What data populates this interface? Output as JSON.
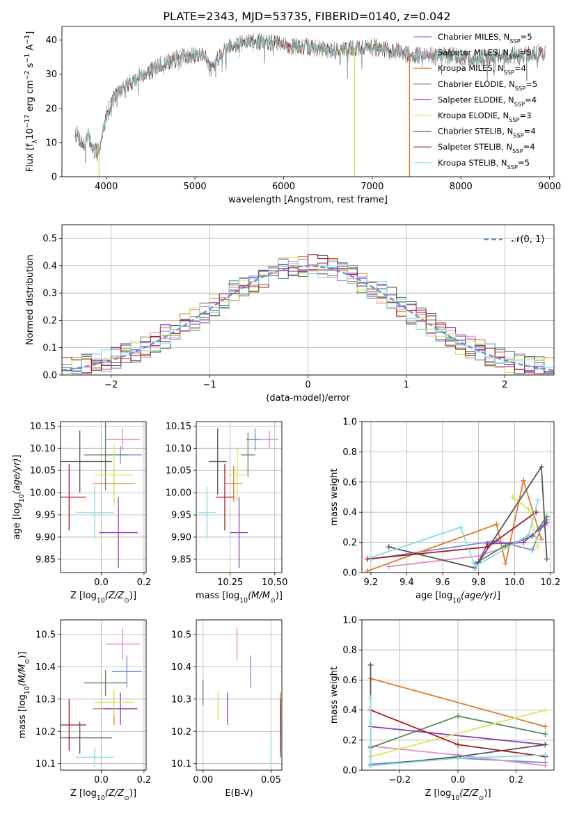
{
  "page_title": "PLATE=2343, MJD=53735, FIBERID=0140, z=0.042",
  "colors": {
    "series": [
      "#6c8ed6",
      "#e58ac6",
      "#e07b2a",
      "#5b8a5b",
      "#8e3ab5",
      "#d4e85a",
      "#555555",
      "#a81820",
      "#86dde0"
    ],
    "normal_curve": "#6c8ed6",
    "grid": "#b0b0b0"
  },
  "chart_data": [
    {
      "id": "spectrum",
      "type": "line",
      "title": "PLATE=2343, MJD=53735, FIBERID=0140, z=0.042",
      "xlabel": "wavelength [Angstrom, rest frame]",
      "ylabel": "Flux [f",
      "xlim": [
        3500,
        9050
      ],
      "ylim": [
        0,
        44
      ],
      "xticks": [
        4000,
        5000,
        6000,
        7000,
        8000,
        9000
      ],
      "yticks": [
        0,
        10,
        20,
        30,
        40
      ],
      "grid": false,
      "legend": "upper-right",
      "continuum": {
        "x": [
          3650,
          3700,
          3750,
          3800,
          3850,
          3900,
          3950,
          4000,
          4100,
          4200,
          4300,
          4400,
          4500,
          4600,
          4700,
          4800,
          4900,
          5000,
          5100,
          5200,
          5300,
          5400,
          5500,
          5600,
          5800,
          6000,
          6200,
          6400,
          6600,
          6800,
          7000,
          7200,
          7400,
          7600,
          7800,
          8000,
          8200,
          8400,
          8600,
          8800,
          8950
        ],
        "y": [
          13,
          11,
          9,
          12,
          8,
          7,
          11,
          18,
          24,
          26,
          28,
          30,
          31,
          32.5,
          33.5,
          34.5,
          35.5,
          35.5,
          36,
          31,
          37,
          38.5,
          39,
          39.5,
          39.5,
          38.5,
          38,
          37.5,
          37,
          37.5,
          38,
          37,
          36,
          35.5,
          35.5,
          35,
          34.5,
          35,
          35.5,
          36,
          36.5
        ]
      },
      "sky_spikes": [
        {
          "x": 3920,
          "series": 5
        },
        {
          "x": 6800,
          "series": 5
        },
        {
          "x": 7420,
          "series": 2
        }
      ],
      "series": [
        {
          "name": "Chabrier MILES",
          "nssp": "5"
        },
        {
          "name": "Salpeter MILES",
          "nssp": "5"
        },
        {
          "name": "Kroupa MILES",
          "nssp": "4"
        },
        {
          "name": "Chabrier ELODIE",
          "nssp": "5"
        },
        {
          "name": "Salpeter ELODIE",
          "nssp": "4"
        },
        {
          "name": "Kroupa ELODIE",
          "nssp": "3"
        },
        {
          "name": "Chabrier STELIB",
          "nssp": "4"
        },
        {
          "name": "Salpeter STELIB",
          "nssp": "4"
        },
        {
          "name": "Kroupa STELIB",
          "nssp": "5"
        }
      ]
    },
    {
      "id": "residuals",
      "type": "histogram",
      "xlabel": "(data-model)/error",
      "ylabel": "Normed distribution",
      "xlim": [
        -2.5,
        2.5
      ],
      "ylim": [
        0,
        0.55
      ],
      "xticks": [
        -2,
        -1,
        0,
        1,
        2
      ],
      "yticks": [
        0.0,
        0.1,
        0.2,
        0.3,
        0.4,
        0.5
      ],
      "grid": true,
      "legend": "upper-right",
      "bin_width": 0.1,
      "bin_start": -2.5,
      "reference_curve": "normal(0,1)"
    },
    {
      "id": "age-vs-Z",
      "type": "scatter",
      "xlabel": "Z [log",
      "ylabel": "age  [log",
      "xlim": [
        -0.19,
        0.21
      ],
      "ylim": [
        9.82,
        10.16
      ],
      "xticks": [
        0.0,
        0.2
      ],
      "yticks": [
        9.85,
        9.9,
        9.95,
        10.0,
        10.05,
        10.1,
        10.15
      ],
      "grid": true,
      "points": [
        {
          "x": 0.09,
          "y": 10.085,
          "ex": 0.1,
          "ey": 0.02
        },
        {
          "x": 0.1,
          "y": 10.12,
          "ex": 0.08,
          "ey": 0.025
        },
        {
          "x": 0.06,
          "y": 10.02,
          "ex": 0.1,
          "ey": 0.04
        },
        {
          "x": 0.02,
          "y": 10.085,
          "ex": 0.1,
          "ey": 0.08
        },
        {
          "x": 0.08,
          "y": 9.91,
          "ex": 0.09,
          "ey": 0.08
        },
        {
          "x": 0.06,
          "y": 10.04,
          "ex": 0.09,
          "ey": 0.07
        },
        {
          "x": -0.1,
          "y": 10.07,
          "ex": 0.15,
          "ey": 0.07
        },
        {
          "x": -0.15,
          "y": 9.99,
          "ex": 0.08,
          "ey": 0.075
        },
        {
          "x": -0.03,
          "y": 9.955,
          "ex": 0.09,
          "ey": 0.06
        }
      ]
    },
    {
      "id": "age-vs-mass",
      "type": "scatter",
      "xlabel": "mass [log",
      "ylabel": "",
      "xlim": [
        10.06,
        10.54
      ],
      "ylim": [
        9.82,
        10.16
      ],
      "xticks": [
        10.25,
        10.5
      ],
      "yticks": [
        9.85,
        9.9,
        9.95,
        10.0,
        10.05,
        10.1,
        10.15
      ],
      "grid": true,
      "points": [
        {
          "x": 10.39,
          "y": 10.12,
          "ex": 0.05,
          "ey": 0.025
        },
        {
          "x": 10.47,
          "y": 10.12,
          "ex": 0.05,
          "ey": 0.02
        },
        {
          "x": 10.27,
          "y": 10.02,
          "ex": 0.05,
          "ey": 0.04
        },
        {
          "x": 10.35,
          "y": 10.085,
          "ex": 0.04,
          "ey": 0.05
        },
        {
          "x": 10.3,
          "y": 9.91,
          "ex": 0.05,
          "ey": 0.08
        },
        {
          "x": 10.29,
          "y": 10.04,
          "ex": 0.05,
          "ey": 0.06
        },
        {
          "x": 10.18,
          "y": 10.07,
          "ex": 0.05,
          "ey": 0.075
        },
        {
          "x": 10.22,
          "y": 9.99,
          "ex": 0.05,
          "ey": 0.075
        },
        {
          "x": 10.12,
          "y": 9.955,
          "ex": 0.05,
          "ey": 0.06
        }
      ]
    },
    {
      "id": "weight-vs-age",
      "type": "line",
      "xlabel": "age  [log",
      "ylabel": "mass weight",
      "xlim": [
        9.15,
        10.22
      ],
      "ylim": [
        0,
        1.0
      ],
      "xticks": [
        9.2,
        9.4,
        9.6,
        9.8,
        10.0,
        10.2
      ],
      "yticks": [
        0.0,
        0.2,
        0.4,
        0.6,
        0.8,
        1.0
      ],
      "grid": true,
      "series": [
        {
          "x": [
            9.2,
            9.9,
            10.1,
            10.15,
            10.18
          ],
          "y": [
            0.09,
            0.21,
            0.15,
            0.3,
            0.35
          ]
        },
        {
          "x": [
            9.3,
            9.8,
            10.0,
            10.1,
            10.18
          ],
          "y": [
            0.04,
            0.11,
            0.19,
            0.25,
            0.33
          ]
        },
        {
          "x": [
            9.18,
            9.9,
            9.95,
            10.05,
            10.15
          ],
          "y": [
            0.01,
            0.32,
            0.06,
            0.61,
            0.22
          ]
        },
        {
          "x": [
            9.78,
            9.95,
            10.1,
            10.18
          ],
          "y": [
            0.06,
            0.18,
            0.24,
            0.37
          ]
        },
        {
          "x": [
            9.8,
            9.85,
            10.05,
            10.18
          ],
          "y": [
            0.07,
            0.19,
            0.2,
            0.33
          ]
        },
        {
          "x": [
            9.99,
            10.08,
            10.13
          ],
          "y": [
            0.5,
            0.42,
            0.17
          ]
        },
        {
          "x": [
            9.3,
            9.78,
            10.15,
            10.18
          ],
          "y": [
            0.17,
            0.03,
            0.7,
            0.09
          ]
        },
        {
          "x": [
            9.18,
            9.85,
            10.12
          ],
          "y": [
            0.09,
            0.17,
            0.4
          ]
        },
        {
          "x": [
            9.2,
            9.7,
            9.78,
            10.08,
            10.13
          ],
          "y": [
            0.1,
            0.3,
            0.04,
            0.25,
            0.48
          ]
        }
      ]
    },
    {
      "id": "mass-vs-Z",
      "type": "scatter",
      "xlabel": "Z [log",
      "ylabel": "mass [log",
      "xlim": [
        -0.19,
        0.21
      ],
      "ylim": [
        10.08,
        10.545
      ],
      "xticks": [
        0.0,
        0.2
      ],
      "yticks": [
        10.1,
        10.2,
        10.3,
        10.4,
        10.5
      ],
      "grid": true,
      "points": [
        {
          "x": 0.12,
          "y": 10.385,
          "ex": 0.07,
          "ey": 0.05
        },
        {
          "x": 0.1,
          "y": 10.47,
          "ex": 0.08,
          "ey": 0.05
        },
        {
          "x": 0.06,
          "y": 10.27,
          "ex": 0.1,
          "ey": 0.05
        },
        {
          "x": 0.02,
          "y": 10.35,
          "ex": 0.1,
          "ey": 0.04
        },
        {
          "x": 0.09,
          "y": 10.27,
          "ex": 0.08,
          "ey": 0.05
        },
        {
          "x": 0.06,
          "y": 10.29,
          "ex": 0.09,
          "ey": 0.04
        },
        {
          "x": -0.1,
          "y": 10.18,
          "ex": 0.15,
          "ey": 0.05
        },
        {
          "x": -0.15,
          "y": 10.22,
          "ex": 0.08,
          "ey": 0.08
        },
        {
          "x": -0.03,
          "y": 10.12,
          "ex": 0.09,
          "ey": 0.03
        }
      ]
    },
    {
      "id": "mass-vs-ebv",
      "type": "scatter",
      "xlabel": "E(B-V)",
      "ylabel": "",
      "xlim": [
        -0.005,
        0.058
      ],
      "ylim": [
        10.08,
        10.545
      ],
      "xticks": [
        0.0,
        0.05
      ],
      "yticks": [
        10.1,
        10.2,
        10.3,
        10.4,
        10.5
      ],
      "grid": true,
      "points": [
        {
          "x": 0.035,
          "y": 10.385,
          "ey": 0.05
        },
        {
          "x": 0.025,
          "y": 10.47,
          "ey": 0.05
        },
        {
          "x": 0.057,
          "y": 10.27,
          "ey": 0.05
        },
        {
          "x": 0.0,
          "y": 10.32,
          "ey": 0.04
        },
        {
          "x": 0.018,
          "y": 10.27,
          "ey": 0.05
        },
        {
          "x": 0.011,
          "y": 10.28,
          "ey": 0.045
        },
        {
          "x": 0.057,
          "y": 10.2,
          "ey": 0.08
        },
        {
          "x": 0.057,
          "y": 10.22,
          "ey": 0.08
        },
        {
          "x": 0.05,
          "y": 10.12,
          "ey": 0.08
        }
      ]
    },
    {
      "id": "weight-vs-Z",
      "type": "line",
      "xlabel": "Z [log",
      "ylabel": "mass weight",
      "xlim": [
        -0.33,
        0.33
      ],
      "ylim": [
        0,
        1.0
      ],
      "xticks": [
        -0.2,
        0.0,
        0.2
      ],
      "yticks": [
        0.0,
        0.2,
        0.4,
        0.6,
        0.8,
        1.0
      ],
      "grid": true,
      "series": [
        {
          "x": [
            -0.3,
            0.0,
            0.3
          ],
          "y": [
            0.04,
            0.08,
            0.05
          ]
        },
        {
          "x": [
            -0.3,
            0.0,
            0.3
          ],
          "y": [
            0.16,
            0.1,
            0.03
          ]
        },
        {
          "x": [
            -0.3,
            0.3
          ],
          "y": [
            0.61,
            0.29
          ]
        },
        {
          "x": [
            -0.3,
            0.0,
            0.3
          ],
          "y": [
            0.15,
            0.36,
            0.24
          ]
        },
        {
          "x": [
            -0.3,
            0.3
          ],
          "y": [
            0.29,
            0.17
          ]
        },
        {
          "x": [
            -0.3,
            0.3
          ],
          "y": [
            0.09,
            0.4
          ]
        },
        {
          "x": [
            -0.3,
            -0.3,
            0.0,
            0.3
          ],
          "y": [
            0.7,
            0.03,
            0.09,
            0.17
          ]
        },
        {
          "x": [
            -0.3,
            0.0,
            0.3
          ],
          "y": [
            0.4,
            0.17,
            0.09
          ]
        },
        {
          "x": [
            -0.3,
            -0.3,
            0.0,
            0.3
          ],
          "y": [
            0.48,
            0.03,
            0.08,
            0.1
          ]
        }
      ]
    }
  ]
}
